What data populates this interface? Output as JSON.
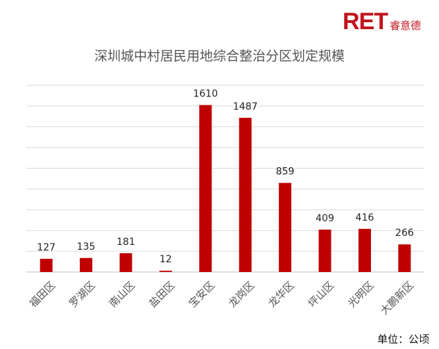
{
  "brand": {
    "mark": "RET",
    "name_cn": "睿意德",
    "color": "#c0141e"
  },
  "footer": {
    "unit": "单位：公顷"
  },
  "chart_data": {
    "type": "bar",
    "title": "深圳城中村居民用地综合整治分区划定规模",
    "xlabel": "",
    "ylabel": "",
    "categories": [
      "福田区",
      "罗湖区",
      "南山区",
      "盐田区",
      "宝安区",
      "龙岗区",
      "龙华区",
      "坪山区",
      "光明区",
      "大鹏新区"
    ],
    "values": [
      127,
      135,
      181,
      12,
      1610,
      1487,
      859,
      409,
      416,
      266
    ],
    "ylim": [
      0,
      1800
    ],
    "grid": true,
    "data_labels": true,
    "bar_color": "#c00000",
    "grid_color": "#d9d9d9"
  }
}
